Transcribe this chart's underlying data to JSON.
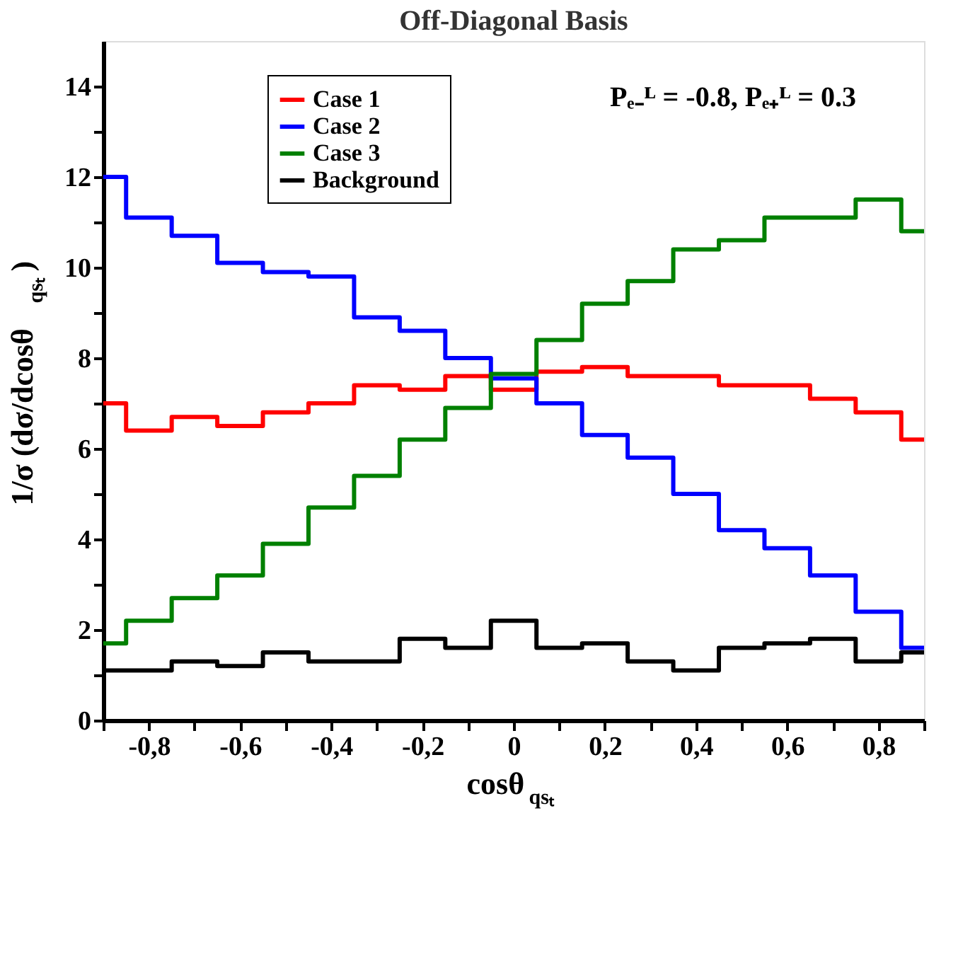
{
  "chart_data": {
    "type": "step",
    "title": "Off-Diagonal Basis",
    "xlabel": "cosθ$_{qsₜ}$",
    "ylabel": "1/σ (dσ/dcosθ$_{qsₜ}$)",
    "annotations": [
      "Pₑ₋ᴸ = -0.8,  Pₑ₊ᴸ = 0.3"
    ],
    "x": [
      -0.9,
      -0.8,
      -0.7,
      -0.6,
      -0.5,
      -0.4,
      -0.3,
      -0.2,
      -0.1,
      0,
      0.1,
      0.2,
      0.3,
      0.4,
      0.5,
      0.6,
      0.7,
      0.8,
      0.9
    ],
    "series": [
      {
        "name": "Case 1",
        "color": "#ff0000",
        "values": [
          7.0,
          6.4,
          6.7,
          6.5,
          6.8,
          7.0,
          7.4,
          7.3,
          7.6,
          7.3,
          7.7,
          7.8,
          7.6,
          7.6,
          7.4,
          7.4,
          7.1,
          6.8,
          6.2
        ]
      },
      {
        "name": "Case 2",
        "color": "#0000ff",
        "values": [
          12.0,
          11.1,
          10.7,
          10.1,
          9.9,
          9.8,
          8.9,
          8.6,
          8.0,
          7.55,
          7.0,
          6.3,
          5.8,
          5.0,
          4.2,
          3.8,
          3.2,
          2.4,
          1.6
        ]
      },
      {
        "name": "Case 3",
        "color": "#008000",
        "values": [
          1.7,
          2.2,
          2.7,
          3.2,
          3.9,
          4.7,
          5.4,
          6.2,
          6.9,
          7.65,
          8.4,
          9.2,
          9.7,
          10.4,
          10.6,
          11.1,
          11.1,
          11.5,
          10.8
        ]
      },
      {
        "name": "Background",
        "color": "#000000",
        "values": [
          1.1,
          1.1,
          1.3,
          1.2,
          1.5,
          1.3,
          1.3,
          1.8,
          1.6,
          2.2,
          1.6,
          1.7,
          1.3,
          1.1,
          1.6,
          1.7,
          1.8,
          1.3,
          1.5
        ]
      }
    ],
    "xlim": [
      -0.9,
      0.9
    ],
    "xticks": [
      {
        "value": -0.9,
        "label": null
      },
      {
        "value": -0.8,
        "label": "-0,8"
      },
      {
        "value": -0.7,
        "label": null
      },
      {
        "value": -0.6,
        "label": "-0,6"
      },
      {
        "value": -0.5,
        "label": null
      },
      {
        "value": -0.4,
        "label": "-0,4"
      },
      {
        "value": -0.3,
        "label": null
      },
      {
        "value": -0.2,
        "label": "-0,2"
      },
      {
        "value": -0.1,
        "label": null
      },
      0,
      {
        "value": 0.1,
        "label": null
      },
      {
        "value": 0.2,
        "label": "0,2"
      },
      {
        "value": 0.3,
        "label": null
      },
      {
        "value": 0.4,
        "label": "0,4"
      },
      {
        "value": 0.5,
        "label": null
      },
      {
        "value": 0.6,
        "label": "0,6"
      },
      {
        "value": 0.7,
        "label": null
      },
      {
        "value": 0.8,
        "label": "0,8"
      },
      {
        "value": 0.9,
        "label": null
      }
    ],
    "ylim": [
      0,
      15
    ],
    "yticks": [
      0,
      {
        "value": 1,
        "label": null
      },
      2,
      {
        "value": 3,
        "label": null
      },
      4,
      {
        "value": 5,
        "label": null
      },
      6,
      {
        "value": 7,
        "label": null
      },
      8,
      {
        "value": 9,
        "label": null
      },
      10,
      {
        "value": 11,
        "label": null
      },
      12,
      {
        "value": 13,
        "label": null
      },
      14
    ],
    "grid": false,
    "legend": "top left",
    "marker": "none",
    "line_style": "solid"
  }
}
